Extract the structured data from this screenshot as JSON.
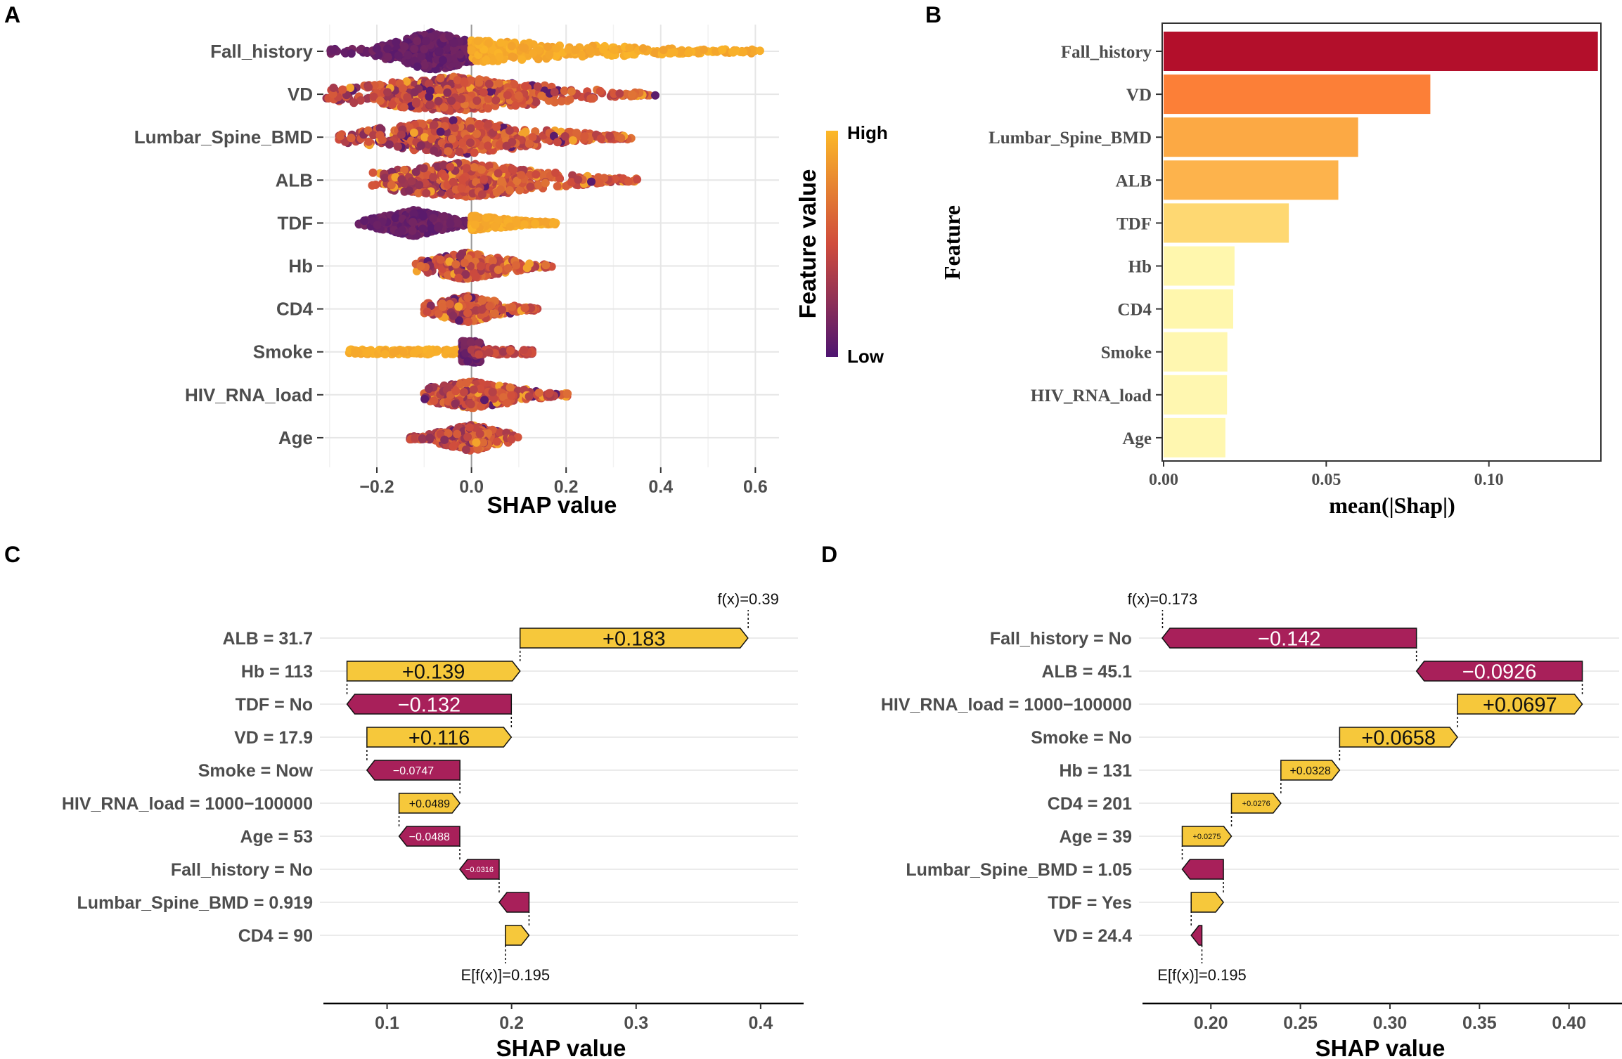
{
  "chart_data": [
    {
      "panel": "A",
      "type": "scatter",
      "subtype": "shap-beeswarm",
      "xlabel": "SHAP value",
      "xlim": [
        -0.31,
        0.65
      ],
      "xticks": [
        -0.2,
        0.0,
        0.2,
        0.4,
        0.6
      ],
      "xtick_labels": [
        "−0.2",
        "0.0",
        "0.2",
        "0.4",
        "0.6"
      ],
      "features": [
        {
          "name": "Fall_history",
          "low_min": -0.3,
          "low_max": 0.0,
          "low_center": -0.08,
          "high_min": 0.0,
          "high_max": 0.61,
          "pattern": "binary"
        },
        {
          "name": "VD",
          "min": -0.31,
          "max": 0.39,
          "center": -0.04,
          "pattern": "mixed"
        },
        {
          "name": "Lumbar_Spine_BMD",
          "min": -0.28,
          "max": 0.34,
          "center": -0.03,
          "pattern": "mixed"
        },
        {
          "name": "ALB",
          "min": -0.21,
          "max": 0.35,
          "center": -0.02,
          "pattern": "mixed"
        },
        {
          "name": "TDF",
          "low_min": -0.24,
          "low_max": 0.0,
          "high_min": 0.0,
          "high_max": 0.18,
          "pattern": "binary"
        },
        {
          "name": "Hb",
          "min": -0.12,
          "max": 0.17,
          "center": -0.01,
          "pattern": "mixed"
        },
        {
          "name": "CD4",
          "min": -0.1,
          "max": 0.14,
          "center": -0.01,
          "pattern": "mixed"
        },
        {
          "name": "Smoke",
          "min": -0.26,
          "max": 0.13,
          "center": 0.0,
          "pattern": "smoke"
        },
        {
          "name": "HIV_RNA_load",
          "min": -0.1,
          "max": 0.21,
          "center": 0.0,
          "pattern": "mixed"
        },
        {
          "name": "Age",
          "min": -0.13,
          "max": 0.1,
          "center": 0.0,
          "pattern": "mixed"
        }
      ],
      "colorbar": {
        "title": "Feature value",
        "high_label": "High",
        "low_label": "Low",
        "high_color": "#fcb928",
        "mid_color": "#d04c3c",
        "low_color": "#4e1571"
      }
    },
    {
      "panel": "B",
      "type": "bar",
      "orientation": "horizontal",
      "xlabel": "mean(|Shap|)",
      "ylabel": "Feature",
      "xlim": [
        0,
        0.134
      ],
      "xticks": [
        0.0,
        0.05,
        0.1
      ],
      "xtick_labels": [
        "0.00",
        "0.05",
        "0.10"
      ],
      "categories": [
        "Fall_history",
        "VD",
        "Lumbar_Spine_BMD",
        "ALB",
        "TDF",
        "Hb",
        "CD4",
        "Smoke",
        "HIV_RNA_load",
        "Age"
      ],
      "values": [
        0.1335,
        0.082,
        0.0598,
        0.0537,
        0.0385,
        0.0218,
        0.0214,
        0.0196,
        0.0195,
        0.019
      ],
      "colors": [
        "#b30f2b",
        "#fc7f37",
        "#fca944",
        "#fdb34c",
        "#fed872",
        "#fff7ad",
        "#fff7ad",
        "#fff7b0",
        "#fff7b0",
        "#fff7b0"
      ]
    },
    {
      "panel": "C",
      "type": "waterfall",
      "xlabel": "SHAP value",
      "xlim": [
        0.05,
        0.43
      ],
      "xticks": [
        0.1,
        0.2,
        0.3,
        0.4
      ],
      "xtick_labels": [
        "0.1",
        "0.2",
        "0.3",
        "0.4"
      ],
      "base_value": 0.195,
      "base_label": "E[f(x)]=0.195",
      "fx_value": 0.39,
      "fx_label": "f(x)=0.39",
      "bars": [
        {
          "feature": "ALB = 31.7",
          "value": 0.183,
          "label": "+0.183"
        },
        {
          "feature": "Hb = 113",
          "value": 0.139,
          "label": "+0.139"
        },
        {
          "feature": "TDF = No",
          "value": -0.132,
          "label": "−0.132"
        },
        {
          "feature": "VD = 17.9",
          "value": 0.116,
          "label": "+0.116"
        },
        {
          "feature": "Smoke = Now",
          "value": -0.0747,
          "label": "−0.0747"
        },
        {
          "feature": "HIV_RNA_load = 1000−100000",
          "value": 0.0489,
          "label": "+0.0489"
        },
        {
          "feature": "Age = 53",
          "value": -0.0488,
          "label": "−0.0488"
        },
        {
          "feature": "Fall_history = No",
          "value": -0.0316,
          "label": "−0.0316"
        },
        {
          "feature": "Lumbar_Spine_BMD = 0.919",
          "value": -0.024,
          "label": ""
        },
        {
          "feature": "CD4 = 90",
          "value": 0.019,
          "label": ""
        }
      ]
    },
    {
      "panel": "D",
      "type": "waterfall",
      "xlabel": "SHAP value",
      "xlim": [
        0.163,
        0.428
      ],
      "xticks": [
        0.2,
        0.25,
        0.3,
        0.35,
        0.4
      ],
      "xtick_labels": [
        "0.20",
        "0.25",
        "0.30",
        "0.35",
        "0.40"
      ],
      "base_value": 0.195,
      "base_label": "E[f(x)]=0.195",
      "fx_value": 0.173,
      "fx_label": "f(x)=0.173",
      "bars": [
        {
          "feature": "Fall_history = No",
          "value": -0.142,
          "label": "−0.142"
        },
        {
          "feature": "ALB = 45.1",
          "value": -0.0926,
          "label": "−0.0926"
        },
        {
          "feature": "HIV_RNA_load = 1000−100000",
          "value": 0.0697,
          "label": "+0.0697"
        },
        {
          "feature": "Smoke = No",
          "value": 0.0658,
          "label": "+0.0658"
        },
        {
          "feature": "Hb = 131",
          "value": 0.0328,
          "label": "+0.0328"
        },
        {
          "feature": "CD4 = 201",
          "value": 0.0276,
          "label": "+0.0276"
        },
        {
          "feature": "Age = 39",
          "value": 0.0275,
          "label": "+0.0275"
        },
        {
          "feature": "Lumbar_Spine_BMD = 1.05",
          "value": -0.023,
          "label": ""
        },
        {
          "feature": "TDF = Yes",
          "value": 0.018,
          "label": ""
        },
        {
          "feature": "VD = 24.4",
          "value": -0.006,
          "label": ""
        }
      ]
    }
  ],
  "panel_labels": [
    "A",
    "B",
    "C",
    "D"
  ],
  "colors": {
    "positive": "#f6c83b",
    "negative": "#a8205a",
    "grid": "#ebebeb",
    "axis": "#333333",
    "text": "#4d4d4d"
  }
}
